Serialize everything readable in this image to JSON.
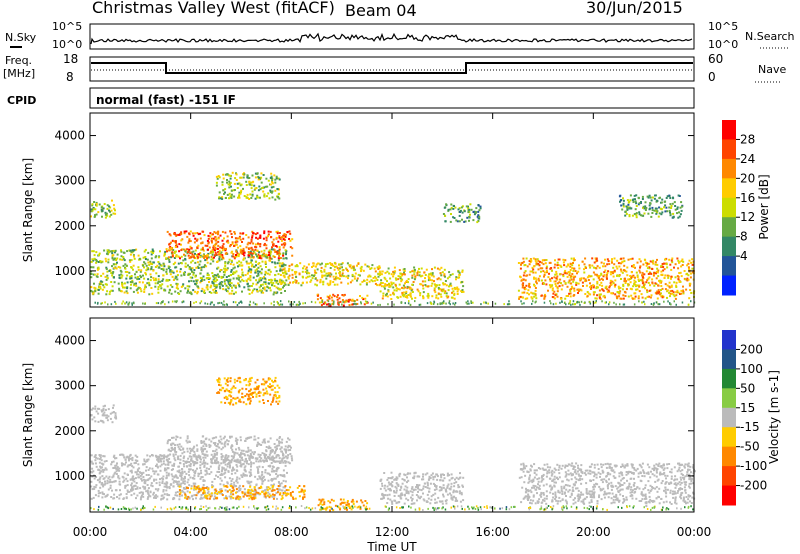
{
  "header": {
    "title": "Christmas Valley West (fitACF)",
    "beam": "Beam 04",
    "date": "30/Jun/2015"
  },
  "top_panels": {
    "nsky_label": "N.Sky",
    "nsky_ticks": [
      "10^5",
      "10^0"
    ],
    "nsearch_label": "N.Search",
    "freq_label": "Freq.",
    "freq_unit": "[MHz]",
    "freq_ticks": [
      "18",
      "8"
    ],
    "nave_label": "Nave",
    "nave_ticks": [
      "60",
      "0"
    ],
    "cpid_label": "CPID",
    "cpid_text": "normal (fast) -151 IF"
  },
  "power_colorbar": {
    "label": "Power [dB]",
    "ticks": [
      "28",
      "24",
      "20",
      "16",
      "12",
      "8",
      "4"
    ],
    "colors": [
      "#ff0000",
      "#ff4400",
      "#ff8800",
      "#ffcc00",
      "#ccdd00",
      "#66aa44",
      "#338866",
      "#225599",
      "#0022ff"
    ]
  },
  "velocity_colorbar": {
    "label": "Velocity [m s-1]",
    "ticks": [
      "200",
      "100",
      "50",
      "15",
      "-15",
      "-50",
      "-100",
      "-200"
    ],
    "colors": [
      "#2233cc",
      "#225588",
      "#228833",
      "#88cc44",
      "#bbbbbb",
      "#ffcc00",
      "#ff8800",
      "#ff4400",
      "#ff0000"
    ]
  },
  "chart_data": [
    {
      "type": "heatmap",
      "title": "Power",
      "ylabel": "Slant Range [km]",
      "xlabel": "Time UT",
      "x_ticks": [
        "00:00",
        "04:00",
        "08:00",
        "12:00",
        "16:00",
        "20:00",
        "00:00"
      ],
      "y_ticks": [
        "1000",
        "2000",
        "3000",
        "4000"
      ],
      "xlim": [
        0,
        24
      ],
      "ylim": [
        200,
        4500
      ],
      "regions": [
        {
          "t0": 0,
          "t1": 7.8,
          "r0": 500,
          "r1": 1500,
          "level": 12
        },
        {
          "t0": 3.0,
          "t1": 8.0,
          "r0": 1300,
          "r1": 1900,
          "level": 24
        },
        {
          "t0": 7.5,
          "t1": 11.5,
          "r0": 700,
          "r1": 1200,
          "level": 16
        },
        {
          "t0": 9.0,
          "t1": 11.0,
          "r0": 250,
          "r1": 500,
          "level": 24
        },
        {
          "t0": 11.5,
          "t1": 14.8,
          "r0": 400,
          "r1": 1100,
          "level": 16
        },
        {
          "t0": 17.0,
          "t1": 24.0,
          "r0": 400,
          "r1": 1300,
          "level": 20
        },
        {
          "t0": 0,
          "t1": 1.0,
          "r0": 2200,
          "r1": 2600,
          "level": 12
        },
        {
          "t0": 5.0,
          "t1": 7.5,
          "r0": 2600,
          "r1": 3200,
          "level": 12
        },
        {
          "t0": 14.0,
          "t1": 15.5,
          "r0": 2100,
          "r1": 2500,
          "level": 8
        },
        {
          "t0": 21.0,
          "t1": 23.5,
          "r0": 2200,
          "r1": 2700,
          "level": 8
        }
      ]
    },
    {
      "type": "heatmap",
      "title": "Velocity",
      "ylabel": "Slant Range [km]",
      "xlabel": "Time UT",
      "x_ticks": [
        "00:00",
        "04:00",
        "08:00",
        "12:00",
        "16:00",
        "20:00",
        "00:00"
      ],
      "y_ticks": [
        "1000",
        "2000",
        "3000",
        "4000"
      ],
      "xlim": [
        0,
        24
      ],
      "ylim": [
        200,
        4500
      ],
      "regions": [
        {
          "t0": 0,
          "t1": 7.8,
          "r0": 500,
          "r1": 1500,
          "level": 0
        },
        {
          "t0": 3.0,
          "t1": 8.0,
          "r0": 1300,
          "r1": 1900,
          "level": 0
        },
        {
          "t0": 3.5,
          "t1": 8.5,
          "r0": 500,
          "r1": 800,
          "level": -50
        },
        {
          "t0": 9.0,
          "t1": 11.0,
          "r0": 250,
          "r1": 500,
          "level": -50
        },
        {
          "t0": 11.5,
          "t1": 14.8,
          "r0": 400,
          "r1": 1100,
          "level": 0
        },
        {
          "t0": 17.0,
          "t1": 24.0,
          "r0": 400,
          "r1": 1300,
          "level": 0
        },
        {
          "t0": 0,
          "t1": 1.0,
          "r0": 2200,
          "r1": 2600,
          "level": 0
        },
        {
          "t0": 5.0,
          "t1": 7.5,
          "r0": 2600,
          "r1": 3200,
          "level": -50
        }
      ]
    }
  ]
}
